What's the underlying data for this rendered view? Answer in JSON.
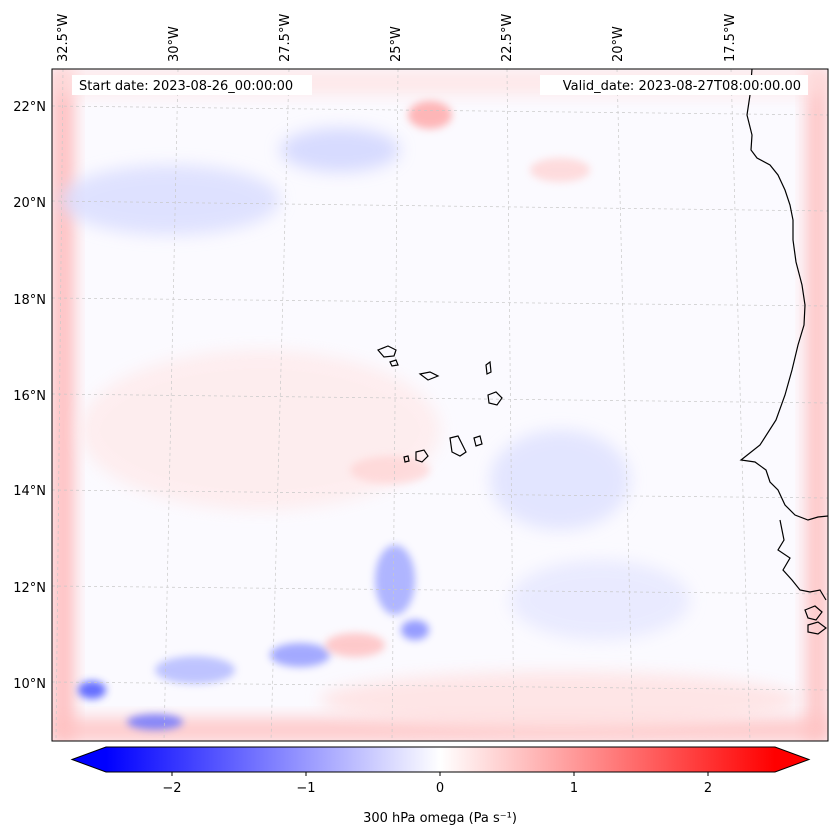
{
  "map": {
    "start_date_label": "Start date: 2023-08-26_00:00:00",
    "valid_date_label": "Valid_date: 2023-08-27T08:00:00.00",
    "lon_ticks": [
      "32.5°W",
      "30°W",
      "27.5°W",
      "25°W",
      "22.5°W",
      "20°W",
      "17.5°W"
    ],
    "lat_ticks": [
      "22°N",
      "20°N",
      "18°N",
      "16°N",
      "14°N",
      "12°N",
      "10°N"
    ],
    "field_colormap": "bwr",
    "field_range": [
      -2.5,
      2.5
    ],
    "coastline_color": "#000000",
    "gridline_color": "#c8c8c8"
  },
  "colorbar": {
    "label": "300 hPa omega (Pa s⁻¹)",
    "ticks": [
      "−2",
      "−1",
      "0",
      "1",
      "2"
    ],
    "tick_values": [
      -2,
      -1,
      0,
      1,
      2
    ],
    "range": [
      -2.5,
      2.5
    ],
    "extend": "both",
    "colors": {
      "min": "#0000ff",
      "mid": "#ffffff",
      "max": "#ff0000"
    }
  }
}
